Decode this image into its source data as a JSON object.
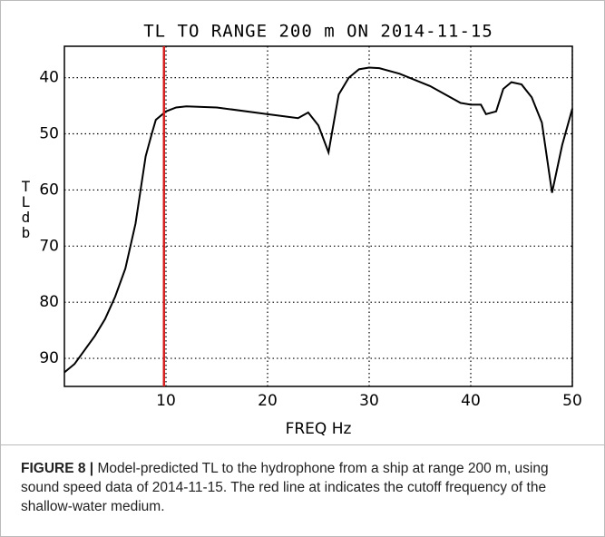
{
  "chart_data": {
    "type": "line",
    "title": "TL TO RANGE 200 m  ON 2014-11-15",
    "xlabel": "FREQ Hz",
    "ylabel": "TL db",
    "x": [
      0,
      1,
      2,
      3,
      4,
      5,
      6,
      7,
      8,
      8.6,
      9,
      10,
      11,
      12,
      15,
      20,
      23,
      24,
      25,
      26,
      27,
      28,
      29,
      30,
      31,
      33,
      36,
      39,
      40,
      41,
      41.5,
      42.5,
      43.2,
      44,
      45,
      46,
      47,
      48,
      49,
      50
    ],
    "series": [
      {
        "name": "TL",
        "color": "#000000",
        "values": [
          92.5,
          91,
          88.5,
          86,
          83,
          79,
          74,
          66,
          54,
          50,
          47.5,
          46,
          45.3,
          45.1,
          45.3,
          46.5,
          47.2,
          46.2,
          48.5,
          53.3,
          43,
          40,
          38.5,
          38.2,
          38.3,
          39.3,
          41.5,
          44.5,
          44.8,
          44.8,
          46.5,
          46,
          42,
          40.8,
          41.2,
          43.5,
          48,
          60.5,
          52,
          45.5
        ]
      }
    ],
    "cutoff_x": 9.8,
    "cutoff_color": "#d62020",
    "xlim": [
      0,
      50
    ],
    "xticks": [
      10,
      20,
      30,
      40,
      50
    ],
    "ylim": [
      95,
      34.4
    ],
    "yticks": [
      40,
      50,
      60,
      70,
      80,
      90
    ],
    "grid": true
  },
  "caption": {
    "label": "FIGURE 8 |",
    "text": "Model-predicted TL to the hydrophone from a ship at range 200 m, using sound speed data of 2014-11-15. The red line at indicates the cutoff frequency of the shallow-water medium."
  }
}
